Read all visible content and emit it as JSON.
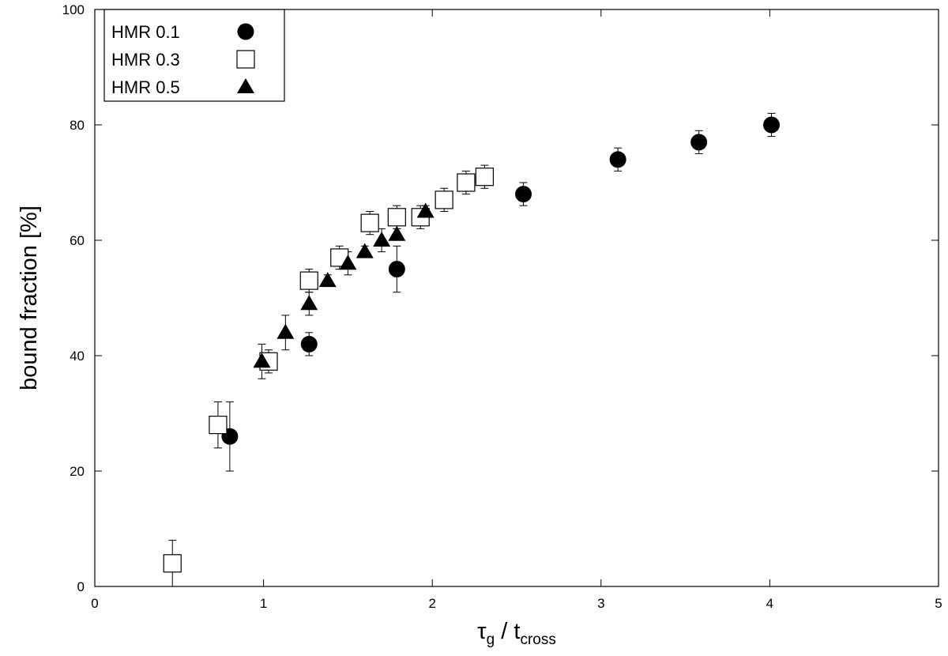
{
  "chart_data": {
    "type": "scatter",
    "xlabel": {
      "main": "τ",
      "sub1": "g",
      "mid": " / t",
      "sub2": "cross"
    },
    "ylabel": "bound fraction [%]",
    "xlim": [
      0,
      5
    ],
    "ylim": [
      0,
      100
    ],
    "x_ticks": [
      "0",
      "1",
      "2",
      "3",
      "4",
      "5"
    ],
    "y_ticks": [
      "0",
      "20",
      "40",
      "60",
      "80",
      "100"
    ],
    "legend_position": "top-left",
    "grid": false,
    "series": [
      {
        "name": "HMR 0.1",
        "marker": "filled-circle",
        "points": [
          {
            "x": 0.8,
            "y": 26,
            "err": 6
          },
          {
            "x": 1.27,
            "y": 42,
            "err": 2
          },
          {
            "x": 1.79,
            "y": 55,
            "err": 4
          },
          {
            "x": 2.54,
            "y": 68,
            "err": 2
          },
          {
            "x": 3.1,
            "y": 74,
            "err": 2
          },
          {
            "x": 3.58,
            "y": 77,
            "err": 2
          },
          {
            "x": 4.01,
            "y": 80,
            "err": 2
          }
        ]
      },
      {
        "name": "HMR 0.3",
        "marker": "open-square",
        "points": [
          {
            "x": 0.46,
            "y": 4,
            "err": 4
          },
          {
            "x": 0.73,
            "y": 28,
            "err": 4
          },
          {
            "x": 1.03,
            "y": 39,
            "err": 2
          },
          {
            "x": 1.27,
            "y": 53,
            "err": 2
          },
          {
            "x": 1.45,
            "y": 57,
            "err": 2
          },
          {
            "x": 1.63,
            "y": 63,
            "err": 2
          },
          {
            "x": 1.79,
            "y": 64,
            "err": 2
          },
          {
            "x": 1.93,
            "y": 64,
            "err": 2
          },
          {
            "x": 2.07,
            "y": 67,
            "err": 2
          },
          {
            "x": 2.2,
            "y": 70,
            "err": 2
          },
          {
            "x": 2.31,
            "y": 71,
            "err": 2
          }
        ]
      },
      {
        "name": "HMR 0.5",
        "marker": "filled-triangle",
        "points": [
          {
            "x": 0.99,
            "y": 39,
            "err": 3
          },
          {
            "x": 1.13,
            "y": 44,
            "err": 3
          },
          {
            "x": 1.27,
            "y": 49,
            "err": 2
          },
          {
            "x": 1.38,
            "y": 53,
            "err": 1
          },
          {
            "x": 1.5,
            "y": 56,
            "err": 2
          },
          {
            "x": 1.6,
            "y": 58,
            "err": 1
          },
          {
            "x": 1.7,
            "y": 60,
            "err": 2
          },
          {
            "x": 1.79,
            "y": 61,
            "err": 1
          },
          {
            "x": 1.96,
            "y": 65,
            "err": 1
          }
        ]
      }
    ]
  }
}
